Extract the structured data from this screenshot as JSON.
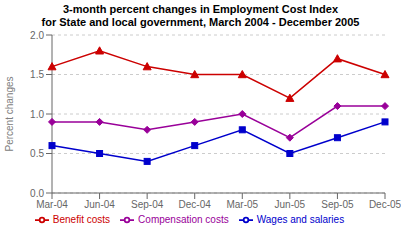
{
  "chart_data": {
    "type": "line",
    "title": "3-month percent changes in Employment Cost Index",
    "subtitle": "for State and local government, March 2004 - December 2005",
    "y_label": "Percent changes",
    "categories": [
      "Mar-04",
      "Jun-04",
      "Sep-04",
      "Dec-04",
      "Mar-05",
      "Jun-05",
      "Sep-05",
      "Dec-05"
    ],
    "series": [
      {
        "name": "Compensation costs",
        "color": "#990099",
        "marker": "diamond",
        "values": [
          0.9,
          0.9,
          0.8,
          0.9,
          1.0,
          0.7,
          1.1,
          1.1
        ]
      },
      {
        "name": "Wages and salaries",
        "color": "#0000cc",
        "marker": "square",
        "values": [
          0.6,
          0.5,
          0.4,
          0.6,
          0.8,
          0.5,
          0.7,
          0.9
        ]
      },
      {
        "name": "Benefit costs",
        "color": "#cc0000",
        "marker": "triangle",
        "values": [
          1.6,
          1.8,
          1.6,
          1.5,
          1.5,
          1.2,
          1.7,
          1.5
        ]
      }
    ],
    "ylim": [
      0.0,
      2.0
    ],
    "yticks": [
      {
        "value": 0,
        "label": "0.0"
      },
      0.5,
      {
        "value": 1,
        "label": "1.0"
      },
      1.5,
      {
        "value": 2,
        "label": "2.0"
      }
    ],
    "grid": true,
    "legend": "bottom"
  }
}
